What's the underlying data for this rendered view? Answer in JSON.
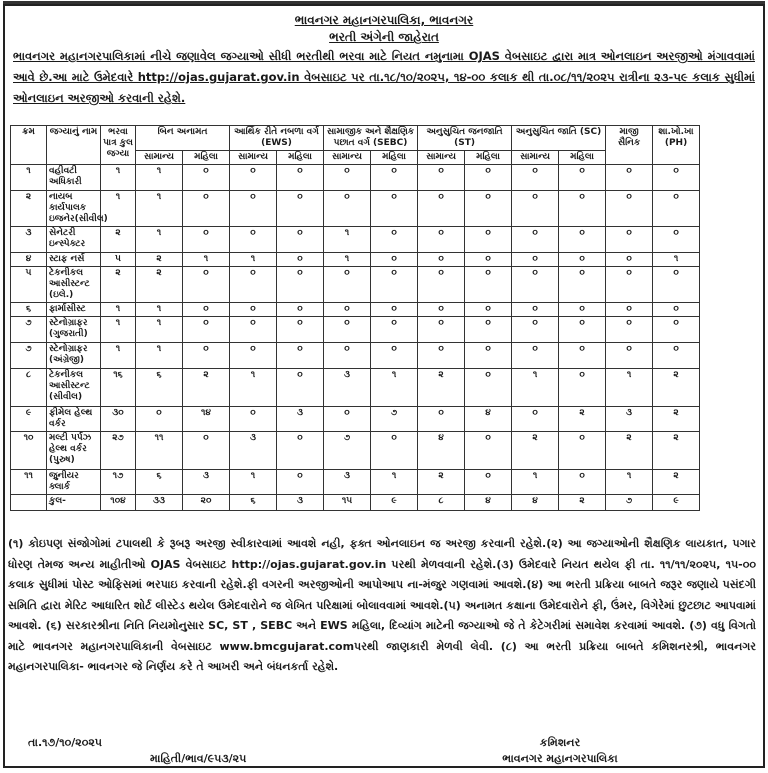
{
  "header": {
    "org": "ભાવનગર મહાનગરપાલિકા, ભાવનગર",
    "title": "ભરતી અંગેની જાહેરાત",
    "intro": "ભાવનગર મહાનગરપાલિકામાં નીચે જણાવેલ જગ્યાઓ સીધી ભરતીથી ભરવા માટે નિયત નમુનામા OJAS વેબસાઇટ દ્વારા માત્ર ઓનલાઇન અરજીઓ મંગાવવામાં આવે છે.આ માટે ઉમેદવારે http://ojas.gujarat.gov.in વેબસાઇટ પર તા.૧૮/૧૦/૨૦૨૫, ૧૪-૦૦ કલાક થી તા.૦૮/૧૧/૨૦૨૫ રાત્રીના ૨૩-૫૯ કલાક સુધીમાં ઓનલાઇન અરજીઓ કરવાની રહેશે."
  },
  "table": {
    "headers": {
      "sr": "ક્રમ",
      "post": "જગ્યાનું નામ",
      "total": "ભરવા પાત્ર કુલ જગ્યા",
      "ur": "બિન અનામત",
      "ews": "આર્થિક રીતે નબળા વર્ગ (EWS)",
      "sebc": "સામાજીક અને શૈક્ષણિક પછાત વર્ગ (SEBC)",
      "st": "અનુસુચિત જનજાતિ (ST)",
      "sc": "અનુસુચિત જાતિ (SC)",
      "exs": "માજી સૈનિક",
      "ph": "શા.ખો.ખા (PH)",
      "general": "સામાન્ય",
      "women": "મહિલા"
    },
    "rows": [
      {
        "sr": "૧",
        "post": "વહીવટી અધિકારી",
        "total": "૧",
        "cells": [
          "૧",
          "૦",
          "૦",
          "૦",
          "૦",
          "૦",
          "૦",
          "૦",
          "૦",
          "૦",
          "૦",
          "૦"
        ]
      },
      {
        "sr": "૨",
        "post": "નાયબ કાર્યપાલક ઇજનેર(સીવીલ)",
        "total": "૧",
        "cells": [
          "૧",
          "૦",
          "૦",
          "૦",
          "૦",
          "૦",
          "૦",
          "૦",
          "૦",
          "૦",
          "૦",
          "૦"
        ]
      },
      {
        "sr": "૩",
        "post": "સેનેટરી ઇન્સ્પેક્ટર",
        "total": "૨",
        "cells": [
          "૧",
          "૦",
          "૦",
          "૦",
          "૧",
          "૦",
          "૦",
          "૦",
          "૦",
          "૦",
          "૦",
          "૦"
        ]
      },
      {
        "sr": "૪",
        "post": "સ્ટાફ નર્સ",
        "total": "૫",
        "cells": [
          "૨",
          "૧",
          "૧",
          "૦",
          "૧",
          "૦",
          "૦",
          "૦",
          "૦",
          "૦",
          "૦",
          "૧"
        ]
      },
      {
        "sr": "૫",
        "post": "ટેકનીકલ આસીસ્ટન્ટ (ઇલે.)",
        "total": "૨",
        "cells": [
          "૨",
          "૦",
          "૦",
          "૦",
          "૦",
          "૦",
          "૦",
          "૦",
          "૦",
          "૦",
          "૦",
          "૦"
        ]
      },
      {
        "sr": "૬",
        "post": "ફાર્માસીસ્ટ",
        "total": "૧",
        "cells": [
          "૧",
          "૦",
          "૦",
          "૦",
          "૦",
          "૦",
          "૦",
          "૦",
          "૦",
          "૦",
          "૦",
          "૦"
        ]
      },
      {
        "sr": "૭",
        "post": "સ્ટેનોગ્રાફર (ગુજરાતી)",
        "total": "૧",
        "cells": [
          "૧",
          "૦",
          "૦",
          "૦",
          "૦",
          "૦",
          "૦",
          "૦",
          "૦",
          "૦",
          "૦",
          "૦"
        ]
      },
      {
        "sr": "૭",
        "post": "સ્ટેનોગ્રાફર (અંગ્રેજી)",
        "total": "૧",
        "cells": [
          "૧",
          "૦",
          "૦",
          "૦",
          "૦",
          "૦",
          "૦",
          "૦",
          "૦",
          "૦",
          "૦",
          "૦"
        ]
      },
      {
        "sr": "૮",
        "post": "ટેકનીકલ આસીસ્ટન્ટ (સીવીલ)",
        "total": "૧૬",
        "cells": [
          "૬",
          "૨",
          "૧",
          "૦",
          "૩",
          "૧",
          "૨",
          "૦",
          "૧",
          "૦",
          "૧",
          "૨"
        ]
      },
      {
        "sr": "૯",
        "post": "ફીમેલ હેલ્થ વર્કર",
        "total": "૩૦",
        "cells": [
          "૦",
          "૧૪",
          "૦",
          "૩",
          "૦",
          "૭",
          "૦",
          "૪",
          "૦",
          "૨",
          "૩",
          "૨"
        ]
      },
      {
        "sr": "૧૦",
        "post": "મલ્ટી પર્પઝ હેલ્થ વર્કર (પુરુષ)",
        "total": "૨૭",
        "cells": [
          "૧૧",
          "૦",
          "૩",
          "૦",
          "૭",
          "૦",
          "૪",
          "૦",
          "૨",
          "૦",
          "૨",
          "૨"
        ]
      },
      {
        "sr": "૧૧",
        "post": "જુનીયર ક્લાર્ક",
        "total": "૧૭",
        "cells": [
          "૬",
          "૩",
          "૧",
          "૦",
          "૩",
          "૧",
          "૨",
          "૦",
          "૧",
          "૦",
          "૧",
          "૨"
        ]
      },
      {
        "sr": "",
        "post": "કુલ-",
        "total": "૧૦૪",
        "cells": [
          "૩૩",
          "૨૦",
          "૬",
          "૩",
          "૧૫",
          "૯",
          "૮",
          "૪",
          "૪",
          "૨",
          "૭",
          "૯"
        ]
      }
    ]
  },
  "notes": "(૧) કોઇપણ સંજોગોમાં ટપાલથી કે રૂબરૂ અરજી સ્વીકારવામાં આવશે નહી, ફક્ત ઓનલાઇન જ અરજી કરવાની રહેશે.(૨) આ જગ્યાઓની શૈક્ષણિક લાયકાત, પગાર ધોરણ તેમજ અન્ય માહીતીઓ OJAS વેબસાઇટ http://ojas.gujarat.gov.in પરથી મેળવવાની રહેશે.(૩) ઉમેદવારે નિયત થયેલ ફી તા. ૧૧/૧૧/૨૦૨૫, ૧૫-૦૦ કલાક સુધીમાં પોસ્ટ ઓફિસમાં ભરપાઇ કરવાની રહેશે.ફી વગરની અરજીઓની આપોઆપ ના-મંજુર ગણવામાં આવશે.(૪) આ ભરતી પ્રક્રિયા બાબતે જરૂર જણાયે પસંદગી સમિતિ દ્વારા મેરિટ આધારિત શોર્ટ લીસ્ટેડ થયેલ ઉમેદવારોને જ લેખિત પરિક્ષામાં બોલાવવામાં આવશે.(૫) અનામત કક્ષાના ઉમેદવારોને ફી, ઉંમર, વિગેરેમાં છુટછાટ આપવામાં આવશે. (૬) સરકારશ્રીના નિતિ નિયમોનુસાર SC, ST , SEBC અને EWS મહિલા, દિવ્યાંગ માટેની જગ્યાઓ જે તે કેટેગરીમાં સમાવેશ કરવામાં આવશે. (૭) વધુ વિગતો માટે ભાવનગર મહાનગરપાલિકાની વેબસાઇટ www.bmcgujarat.comપરથી જાણકારી મેળવી લેવી. (૮) આ ભરતી પ્રક્રિયા બાબતે કમિશનરશ્રી, ભાવનગર મહાનગરપાલિકા- ભાવનગર જે નિર્ણય કરે તે આખરી અને બંધનકર્તા રહેશે.",
  "footer": {
    "date": "તા.૧૭/૧૦/૨૦૨૫",
    "ref": "માહિતી/ભાવ/૯૫૩/૨૫",
    "signatory": "કમિશનર",
    "signatory_org": "ભાવનગર મહાનગરપાલિકા"
  }
}
